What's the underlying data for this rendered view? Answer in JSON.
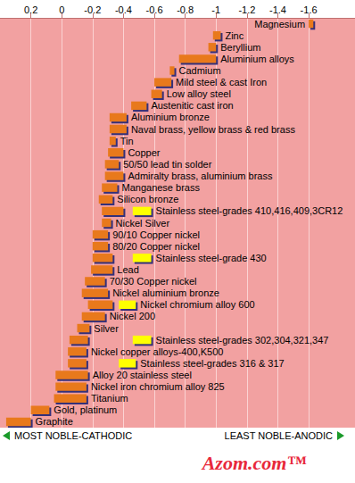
{
  "chart_data": {
    "type": "bar",
    "orientation": "horizontal",
    "categories": [
      "Magnesium",
      "Zinc",
      "Beryllium",
      "Aluminium alloys",
      "Cadmium",
      "Mild steel & cast Iron",
      "Low alloy steel",
      "Austenitic cast iron",
      "Aluminium bronze",
      "Naval brass, yellow brass & red brass",
      "Tin",
      "Copper",
      "50/50 lead tin solder",
      "Admiralty brass, aluminium brass",
      "Manganese brass",
      "Silicon bronze",
      "Stainless steel-grades 410,416,409,3CR12",
      "Nickel Silver",
      "90/10 Copper nickel",
      "80/20 Copper nickel",
      "Stainless steel-grade 430",
      "Lead",
      "70/30 Copper nickel",
      "Nickel aluminium bronze",
      "Nickel chromium alloy 600",
      "Nickel 200",
      "Silver",
      "Stainless steel-grades 302,304,321,347",
      "Nickel copper alloys-400,K500",
      "Stainless steel-grades 316 & 317",
      "Alloy 20 stainless steel",
      "Nickel iron chromium alloy 825",
      "Titanium",
      "Gold, platinum",
      "Graphite"
    ],
    "series": [
      {
        "color": "#e8791c",
        "values": [
          [
            -1.6,
            -1.63
          ],
          [
            -0.98,
            -1.03
          ],
          [
            -0.95,
            -1.0
          ],
          [
            -0.76,
            -1.0
          ],
          [
            -0.7,
            -0.73
          ],
          [
            -0.6,
            -0.71
          ],
          [
            -0.58,
            -0.65
          ],
          [
            -0.45,
            -0.55
          ],
          [
            -0.31,
            -0.42
          ],
          [
            -0.31,
            -0.42
          ],
          [
            -0.31,
            -0.35
          ],
          [
            -0.3,
            -0.4
          ],
          [
            -0.28,
            -0.37
          ],
          [
            -0.28,
            -0.4
          ],
          [
            -0.26,
            -0.36
          ],
          [
            -0.24,
            -0.33
          ],
          [
            -0.26,
            -0.4
          ],
          [
            -0.26,
            -0.32
          ],
          [
            -0.2,
            -0.3
          ],
          [
            -0.2,
            -0.3
          ],
          [
            -0.2,
            -0.33
          ],
          [
            -0.19,
            -0.33
          ],
          [
            -0.15,
            -0.28
          ],
          [
            -0.13,
            -0.3
          ],
          [
            -0.17,
            -0.33
          ],
          [
            -0.13,
            -0.28
          ],
          [
            -0.1,
            -0.18
          ],
          [
            -0.05,
            -0.17
          ],
          [
            -0.04,
            -0.16
          ],
          [
            -0.04,
            -0.16
          ],
          [
            0.04,
            -0.17
          ],
          [
            0.04,
            -0.16
          ],
          [
            0.05,
            -0.16
          ],
          [
            0.2,
            0.08
          ],
          [
            0.36,
            0.2
          ]
        ]
      },
      {
        "color": "#ffff00",
        "values": [
          null,
          null,
          null,
          null,
          null,
          null,
          null,
          null,
          null,
          null,
          null,
          null,
          null,
          null,
          null,
          null,
          [
            -0.46,
            -0.58
          ],
          null,
          null,
          null,
          [
            -0.46,
            -0.58
          ],
          null,
          null,
          null,
          [
            -0.37,
            -0.48
          ],
          null,
          null,
          [
            -0.46,
            -0.58
          ],
          null,
          [
            -0.37,
            -0.48
          ],
          null,
          null,
          null,
          null,
          null
        ]
      }
    ],
    "xlim": [
      0.4,
      -1.9
    ],
    "xticks": [
      0.2,
      0,
      -0.2,
      -0.4,
      -0.6,
      -0.8,
      -1.0,
      -1.2,
      -1.4,
      -1.6
    ],
    "grid": true,
    "tick_labels": "x",
    "annotations": [
      "MOST NOBLE-CATHODIC",
      "LEAST NOBLE-ANODIC",
      "Azom.com™"
    ]
  }
}
